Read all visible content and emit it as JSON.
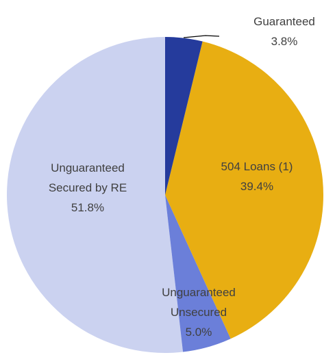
{
  "chart_data": {
    "type": "pie",
    "categories": [
      "Guaranteed",
      "504 Loans (1)",
      "Unguaranteed Unsecured",
      "Unguaranteed Secured by RE"
    ],
    "values": [
      3.8,
      39.4,
      5.0,
      51.8
    ],
    "value_labels": [
      "3.8%",
      "39.4%",
      "5.0%",
      "51.8%"
    ],
    "colors": [
      "#253b9c",
      "#e8ae12",
      "#6b7fd9",
      "#cbd2f0"
    ]
  }
}
